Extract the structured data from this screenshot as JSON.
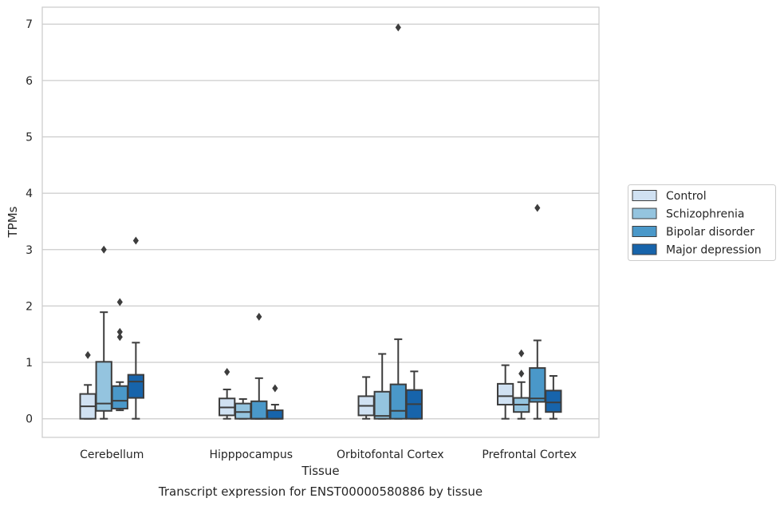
{
  "chart_data": {
    "type": "boxplot",
    "caption": "Transcript expression for ENST00000580886 by tissue",
    "xlabel": "Tissue",
    "ylabel": "TPMs",
    "ylim": [
      -0.33,
      7.3
    ],
    "yticks": [
      0,
      1,
      2,
      3,
      4,
      5,
      6,
      7
    ],
    "grid": "horizontal",
    "legend_placement": "right-center",
    "categories": [
      "Cerebellum",
      "Hipppocampus",
      "Orbitofontal Cortex",
      "Prefrontal Cortex"
    ],
    "series": [
      {
        "name": "Control",
        "color": "#d0e1f2",
        "boxes": [
          {
            "whislo": 0.0,
            "q1": 0.0,
            "med": 0.22,
            "q3": 0.44,
            "whishi": 0.6,
            "fliers": [
              1.13
            ]
          },
          {
            "whislo": 0.0,
            "q1": 0.06,
            "med": 0.2,
            "q3": 0.36,
            "whishi": 0.52,
            "fliers": [
              0.83
            ]
          },
          {
            "whislo": 0.0,
            "q1": 0.06,
            "med": 0.23,
            "q3": 0.4,
            "whishi": 0.74,
            "fliers": []
          },
          {
            "whislo": 0.0,
            "q1": 0.25,
            "med": 0.4,
            "q3": 0.62,
            "whishi": 0.95,
            "fliers": []
          }
        ]
      },
      {
        "name": "Schizophrenia",
        "color": "#94c4df",
        "boxes": [
          {
            "whislo": 0.0,
            "q1": 0.14,
            "med": 0.27,
            "q3": 1.01,
            "whishi": 1.89,
            "fliers": [
              3.0
            ]
          },
          {
            "whislo": 0.0,
            "q1": 0.0,
            "med": 0.12,
            "q3": 0.27,
            "whishi": 0.35,
            "fliers": []
          },
          {
            "whislo": 0.0,
            "q1": 0.0,
            "med": 0.05,
            "q3": 0.48,
            "whishi": 1.15,
            "fliers": []
          },
          {
            "whislo": 0.0,
            "q1": 0.12,
            "med": 0.25,
            "q3": 0.37,
            "whishi": 0.65,
            "fliers": [
              0.8,
              1.16
            ]
          }
        ]
      },
      {
        "name": "Bipolar disorder",
        "color": "#4a98c9",
        "boxes": [
          {
            "whislo": 0.15,
            "q1": 0.18,
            "med": 0.32,
            "q3": 0.58,
            "whishi": 0.65,
            "fliers": [
              1.45,
              1.54,
              2.07
            ]
          },
          {
            "whislo": 0.0,
            "q1": 0.0,
            "med": 0.0,
            "q3": 0.31,
            "whishi": 0.72,
            "fliers": [
              1.81
            ]
          },
          {
            "whislo": 0.0,
            "q1": 0.0,
            "med": 0.14,
            "q3": 0.61,
            "whishi": 1.41,
            "fliers": [
              6.94
            ]
          },
          {
            "whislo": 0.0,
            "q1": 0.3,
            "med": 0.36,
            "q3": 0.9,
            "whishi": 1.39,
            "fliers": [
              3.74
            ]
          }
        ]
      },
      {
        "name": "Major depression",
        "color": "#1764ab",
        "boxes": [
          {
            "whislo": 0.0,
            "q1": 0.37,
            "med": 0.66,
            "q3": 0.78,
            "whishi": 1.35,
            "fliers": [
              3.16
            ]
          },
          {
            "whislo": 0.0,
            "q1": 0.0,
            "med": 0.0,
            "q3": 0.15,
            "whishi": 0.25,
            "fliers": [
              0.54
            ]
          },
          {
            "whislo": 0.0,
            "q1": 0.0,
            "med": 0.26,
            "q3": 0.51,
            "whishi": 0.84,
            "fliers": []
          },
          {
            "whislo": 0.0,
            "q1": 0.12,
            "med": 0.29,
            "q3": 0.5,
            "whishi": 0.76,
            "fliers": []
          }
        ]
      }
    ],
    "style": {
      "box_edge_color": "#3d3d3d",
      "grid_color": "#cccccc",
      "spine_color": "#cccccc",
      "text_color": "#262626",
      "background": "#ffffff"
    }
  }
}
